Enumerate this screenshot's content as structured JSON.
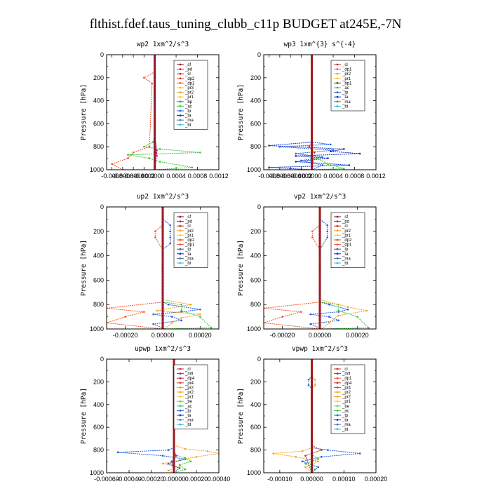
{
  "title": "flthist.fdef.taus_tuning_clubb_c11p  BUDGET at245E,-7N",
  "colors": {
    "_sf": "#8b1a1a",
    "_pd": "#b0207a",
    "_cl": "#d02828",
    "_dp2": "#e8442a",
    "_dp1": "#f05a2a",
    "_pr3": "#f0c020",
    "_pr2": "#f8a020",
    "_pr1": "#f8c840",
    "_bp": "#30a030",
    "_ac": "#38c838",
    "_tp": "#2060d8",
    "_ta": "#1030c0",
    "_ma": "#6070b0",
    "_bt": "#20c8d8",
    "_mfl": "#8030a0",
    "_dp4": "#c03030",
    "_pr4": "#e03838",
    "_be": "#60d060"
  },
  "chart_data": [
    {
      "type": "line",
      "title": "wp2  1xm^2/s^3",
      "ylabel": "Pressure [hPa]",
      "ylim": [
        1000,
        0
      ],
      "yticks": [
        0,
        200,
        400,
        600,
        800,
        1000
      ],
      "xlim": [
        -0.0009,
        0.0012
      ],
      "xticks": [
        -0.0008,
        -0.0006,
        -0.0004,
        -0.0002,
        0.0,
        0.0004,
        0.0008,
        0.0012
      ],
      "xticklabels": [
        "-0.0008",
        "-0.0006",
        "-0.0004",
        "-0.0002",
        "0.0000",
        "0.0004",
        "0.0008",
        "0.0012"
      ],
      "legend": [
        "_sf",
        "_pd",
        "_cl",
        "_dp2",
        "_dp1",
        "_pr3",
        "_pr2",
        "_pr1",
        "_bp",
        "_ac",
        "_tp",
        "_ta",
        "_ma",
        "_bt"
      ],
      "series": [
        {
          "name": "_ac",
          "x": [
            0,
            0,
            -3e-05,
            -0.0002,
            0.0001,
            0.00085,
            -0.0005,
            -0.0001,
            0.0001,
            0.0007,
            0
          ],
          "y": [
            0,
            700,
            760,
            800,
            820,
            850,
            870,
            900,
            930,
            980,
            1000
          ]
        },
        {
          "name": "_dp1",
          "x": [
            0,
            0,
            -0.0002,
            -5e-05,
            -0.0001,
            -0.0004,
            -0.0005,
            -0.0008,
            -0.0006
          ],
          "y": [
            0,
            150,
            200,
            250,
            800,
            850,
            900,
            950,
            1000
          ]
        },
        {
          "name": "_cl",
          "x": [
            0,
            0,
            3e-05,
            0,
            0
          ],
          "y": [
            0,
            800,
            850,
            900,
            1000
          ]
        },
        {
          "name": "_pd",
          "x": [
            0,
            0,
            4e-05,
            4e-05,
            0
          ],
          "y": [
            0,
            700,
            830,
            880,
            1000
          ]
        }
      ]
    },
    {
      "type": "line",
      "title": "wp3  1xm^{3} s^{-4}",
      "ylabel": "Pressure [hPa]",
      "ylim": [
        1000,
        0
      ],
      "yticks": [
        0,
        200,
        400,
        600,
        800,
        1000
      ],
      "xlim": [
        -0.0009,
        0.0012
      ],
      "xticks": [
        -0.0008,
        -0.0006,
        -0.0004,
        -0.0002,
        0.0,
        0.0004,
        0.0008,
        0.0012
      ],
      "xticklabels": [
        "-0.0008",
        "-0.0006",
        "-0.0004",
        "-0.0002",
        "0.0000",
        "0.0004",
        "0.0008",
        "0.0012"
      ],
      "legend": [
        "_cl",
        "_dp1",
        "_pr2",
        "_pr1",
        "_bp1",
        "_ac",
        "_tp",
        "_ta",
        "_ma",
        "_bt"
      ],
      "series": [
        {
          "name": "_ta",
          "x": [
            0,
            0,
            -0.0008,
            0.0006,
            0.00035,
            0.0009,
            -0.0003,
            0.0003,
            -0.0003,
            0.0007,
            -0.0008,
            0
          ],
          "y": [
            0,
            760,
            790,
            820,
            840,
            860,
            880,
            900,
            930,
            960,
            980,
            1000
          ]
        },
        {
          "name": "_tp",
          "x": [
            0,
            0,
            0.00035,
            -0.0006,
            0.0004,
            -0.0003,
            0.0002,
            -0.0002,
            0.0002,
            0
          ],
          "y": [
            0,
            760,
            780,
            800,
            830,
            860,
            890,
            920,
            960,
            1000
          ]
        },
        {
          "name": "_ac",
          "x": [
            0,
            0,
            0.0001,
            0.0003,
            0.0006,
            0
          ],
          "y": [
            0,
            860,
            900,
            950,
            990,
            1000
          ]
        },
        {
          "name": "_cl",
          "x": [
            0,
            0,
            -5e-05,
            5e-05,
            0
          ],
          "y": [
            0,
            760,
            800,
            850,
            1000
          ]
        }
      ]
    },
    {
      "type": "line",
      "title": "up2  1xm^2/s^3",
      "ylabel": "Pressure [hPa]",
      "ylim": [
        1000,
        0
      ],
      "yticks": [
        0,
        200,
        400,
        600,
        800,
        1000
      ],
      "xlim": [
        -0.0003,
        0.0003
      ],
      "xticks": [
        -0.0002,
        0.0,
        0.0002
      ],
      "xticklabels": [
        "-0.00020",
        "0.00000",
        "0.00020"
      ],
      "legend": [
        "_sf",
        "_pd",
        "_cl",
        "_pr2",
        "_pr1",
        "_dp2",
        "_dp1",
        "_tp",
        "_ta",
        "_ma",
        "_bt"
      ],
      "series": [
        {
          "name": "_tp",
          "x": [
            0,
            0,
            4e-05,
            4e-05,
            4e-05,
            4e-05,
            0,
            0,
            3e-05,
            0.0002,
            0.0001,
            -5e-05,
            5e-05,
            0.0001,
            -5e-05,
            1e-05
          ],
          "y": [
            0,
            100,
            150,
            200,
            250,
            300,
            350,
            780,
            800,
            840,
            860,
            880,
            900,
            930,
            960,
            1000
          ]
        },
        {
          "name": "_dp1",
          "x": [
            0,
            0,
            -4e-05,
            -4e-05,
            0,
            0,
            -0.0003,
            -0.0001,
            -0.0002,
            -0.0003,
            0
          ],
          "y": [
            0,
            150,
            200,
            250,
            350,
            780,
            830,
            860,
            900,
            950,
            1000
          ]
        },
        {
          "name": "_ac",
          "x": [
            0,
            0,
            0.0001,
            0.0001,
            0.0002,
            0.00026,
            0
          ],
          "y": [
            0,
            780,
            800,
            850,
            900,
            990,
            1000
          ]
        },
        {
          "name": "_pr2",
          "x": [
            0,
            0,
            0.00015,
            -3e-05,
            0.0002,
            0.0001,
            5e-05,
            1e-05
          ],
          "y": [
            0,
            760,
            800,
            850,
            880,
            910,
            950,
            1000
          ]
        }
      ]
    },
    {
      "type": "line",
      "title": "vp2  1xm^2/s^3",
      "ylabel": "Pressure [hPa]",
      "ylim": [
        1000,
        0
      ],
      "yticks": [
        0,
        200,
        400,
        600,
        800,
        1000
      ],
      "xlim": [
        -0.0003,
        0.0003
      ],
      "xticks": [
        -0.0002,
        0.0,
        0.0002
      ],
      "xticklabels": [
        "-0.00020",
        "0.00000",
        "0.00020"
      ],
      "legend": [
        "_sf",
        "_pd",
        "_cl",
        "_pr2",
        "_pr1",
        "_dp2",
        "_dp1",
        "_tp",
        "_ta",
        "_ma",
        "_bt"
      ],
      "series": [
        {
          "name": "_tp",
          "x": [
            0,
            0,
            4e-05,
            4e-05,
            4e-05,
            0,
            0,
            5e-05,
            0.00015,
            0.0001,
            -5e-05,
            5e-05,
            0.0001,
            -5e-05,
            1e-05
          ],
          "y": [
            0,
            100,
            150,
            200,
            250,
            350,
            780,
            800,
            840,
            860,
            880,
            900,
            930,
            960,
            1000
          ]
        },
        {
          "name": "_dp1",
          "x": [
            0,
            0,
            -4e-05,
            -4e-05,
            0,
            0,
            -0.0003,
            -0.0001,
            -0.0002,
            -0.0003,
            0
          ],
          "y": [
            0,
            150,
            200,
            250,
            350,
            780,
            830,
            860,
            900,
            950,
            1000
          ]
        },
        {
          "name": "_ac",
          "x": [
            0,
            0,
            0.0001,
            0.0001,
            0.0002,
            0.00026,
            0
          ],
          "y": [
            0,
            780,
            800,
            850,
            900,
            990,
            1000
          ]
        },
        {
          "name": "_pr2",
          "x": [
            0,
            0,
            0.00015,
            0.00025,
            0.0001,
            5e-05,
            1e-05
          ],
          "y": [
            0,
            760,
            820,
            850,
            890,
            950,
            1000
          ]
        }
      ]
    },
    {
      "type": "line",
      "title": "upwp  1xm^2/s^3",
      "ylabel": "Pressure [hPa]",
      "ylim": [
        1000,
        0
      ],
      "yticks": [
        0,
        200,
        400,
        600,
        800,
        1000
      ],
      "xlim": [
        -0.0006,
        0.0004
      ],
      "xticks": [
        -0.0006,
        -0.0004,
        -0.0002,
        0.0,
        0.0002,
        0.0004
      ],
      "xticklabels": [
        "-0.00060",
        "-0.00040",
        "-0.00020",
        "0.00000",
        "0.00020",
        "0.00040"
      ],
      "legend": [
        "_cl",
        "_mfl",
        "_dp4",
        "_pr4",
        "_pr2",
        "_pr2",
        "_pr1",
        "_be",
        "_ac",
        "_tp",
        "_ta",
        "_ma",
        "_bt"
      ],
      "series": [
        {
          "name": "_pr2",
          "x": [
            0,
            0,
            0.0001,
            0.0003,
            0.0004,
            0.0002,
            5e-05,
            -0.0001,
            5e-05,
            -5e-05,
            0
          ],
          "y": [
            0,
            760,
            790,
            810,
            830,
            860,
            890,
            920,
            950,
            980,
            1000
          ]
        },
        {
          "name": "_tp",
          "x": [
            0,
            0,
            -5e-05,
            -0.0005,
            -0.0001,
            0.0001,
            -5e-05,
            5e-05,
            0
          ],
          "y": [
            0,
            780,
            800,
            820,
            850,
            880,
            920,
            960,
            1000
          ]
        },
        {
          "name": "_ac",
          "x": [
            0,
            0,
            0.0001,
            0.00015,
            5e-05,
            0.0001,
            0
          ],
          "y": [
            0,
            840,
            870,
            900,
            930,
            970,
            1000
          ]
        },
        {
          "name": "_mfl",
          "x": [
            0,
            0,
            2e-05,
            -2e-05,
            0
          ],
          "y": [
            0,
            800,
            850,
            900,
            1000
          ]
        }
      ]
    },
    {
      "type": "line",
      "title": "vpwp  1xm^2/s^3",
      "ylabel": "Pressure [hPa]",
      "ylim": [
        1000,
        0
      ],
      "yticks": [
        0,
        200,
        400,
        600,
        800,
        1000
      ],
      "xlim": [
        -0.00015,
        0.0002
      ],
      "xticks": [
        -0.0001,
        0.0,
        0.0001,
        0.0002
      ],
      "xticklabels": [
        "-0.00010",
        "0.00000",
        "0.00010",
        "0.00020"
      ],
      "legend": [
        "_cl",
        "_mfl",
        "_dp1",
        "_dp4",
        "_pr4",
        "_pr2",
        "_pr2",
        "_pr1",
        "_be",
        "_ac",
        "_tp",
        "_ta",
        "_ma",
        "_bt"
      ],
      "series": [
        {
          "name": "_pr2",
          "x": [
            0,
            0,
            1e-05,
            1e-05,
            0,
            0,
            -3e-05,
            -0.00012,
            -5e-05,
            2e-05,
            -2e-05,
            0
          ],
          "y": [
            0,
            150,
            180,
            230,
            260,
            780,
            810,
            830,
            860,
            900,
            950,
            1000
          ]
        },
        {
          "name": "_tp",
          "x": [
            0,
            0,
            -1e-05,
            -1e-05,
            0,
            0,
            5e-05,
            0.00015,
            3e-05,
            -3e-05,
            2e-05,
            0
          ],
          "y": [
            0,
            150,
            180,
            230,
            260,
            780,
            800,
            830,
            860,
            900,
            950,
            1000
          ]
        },
        {
          "name": "_dp4",
          "x": [
            0,
            0,
            3e-05,
            -2e-05,
            0
          ],
          "y": [
            0,
            760,
            800,
            850,
            1000
          ]
        },
        {
          "name": "_ac",
          "x": [
            0,
            0,
            2e-05,
            -2e-05,
            1e-05,
            0
          ],
          "y": [
            0,
            840,
            880,
            920,
            970,
            1000
          ]
        }
      ]
    }
  ]
}
